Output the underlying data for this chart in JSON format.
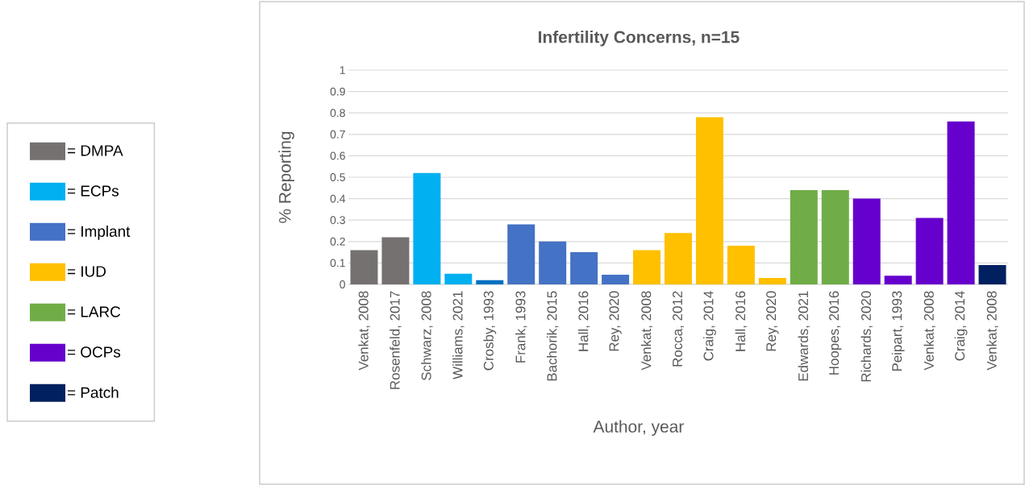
{
  "chart_data": {
    "type": "bar",
    "title": "Infertility Concerns, n=15",
    "xlabel": "Author, year",
    "ylabel": "% Reporting",
    "categories": [
      "Venkat, 2008",
      "Rosenfeld, 2017",
      "Schwarz, 2008",
      "Williams, 2021",
      "Crosby, 1993",
      "Frank, 1993",
      "Bachorik, 2015",
      "Hall, 2016",
      "Rey, 2020",
      "Venkat, 2008",
      "Rocca, 2012",
      "Craig, 2014",
      "Hall, 2016",
      "Rey, 2020",
      "Edwards, 2021",
      "Hoopes, 2016",
      "Richards, 2020",
      "Peipart, 1993",
      "Venkat, 2008",
      "Craig, 2014",
      "Venkat, 2008"
    ],
    "series": [
      {
        "name": "= DMPA",
        "color": "#767171",
        "values": [
          0.16,
          0.22,
          null,
          null,
          null,
          null,
          null,
          null,
          null,
          null,
          null,
          null,
          null,
          null,
          null,
          null,
          null,
          null,
          null,
          null,
          null
        ]
      },
      {
        "name": "= ECPs",
        "color": "#00b0f0",
        "values": [
          null,
          null,
          0.52,
          0.05,
          null,
          null,
          null,
          null,
          null,
          null,
          null,
          null,
          null,
          null,
          null,
          null,
          null,
          null,
          null,
          null,
          null
        ]
      },
      {
        "color": "#0070c0",
        "values": [
          null,
          null,
          null,
          null,
          0.02,
          null,
          null,
          null,
          null,
          null,
          null,
          null,
          null,
          null,
          null,
          null,
          null,
          null,
          null,
          null,
          null
        ]
      },
      {
        "name": "= Implant",
        "color": "#4472c4",
        "values": [
          null,
          null,
          null,
          null,
          null,
          0.28,
          0.2,
          0.15,
          0.045,
          null,
          null,
          null,
          null,
          null,
          null,
          null,
          null,
          null,
          null,
          null,
          null
        ]
      },
      {
        "name": "= IUD",
        "color": "#ffc000",
        "values": [
          null,
          null,
          null,
          null,
          null,
          null,
          null,
          null,
          null,
          0.16,
          0.24,
          0.78,
          0.18,
          0.03,
          null,
          null,
          null,
          null,
          null,
          null,
          null
        ]
      },
      {
        "name": "= LARC",
        "color": "#70ad47",
        "values": [
          null,
          null,
          null,
          null,
          null,
          null,
          null,
          null,
          null,
          null,
          null,
          null,
          null,
          null,
          0.44,
          0.44,
          null,
          null,
          null,
          null,
          null
        ]
      },
      {
        "name": "= OCPs",
        "color": "#6600cc",
        "values": [
          null,
          null,
          null,
          null,
          null,
          null,
          null,
          null,
          null,
          null,
          null,
          null,
          null,
          null,
          null,
          null,
          0.4,
          0.04,
          0.31,
          0.76,
          null
        ]
      },
      {
        "name": "= Patch",
        "color": "#002060",
        "values": [
          null,
          null,
          null,
          null,
          null,
          null,
          null,
          null,
          null,
          null,
          null,
          null,
          null,
          null,
          null,
          null,
          null,
          null,
          null,
          null,
          0.09
        ]
      }
    ],
    "ylim": [
      0,
      1
    ],
    "yticks": [
      0,
      0.1,
      0.2,
      0.3,
      0.4,
      0.5,
      0.6,
      0.7,
      0.8,
      0.9,
      1
    ],
    "grid": "y",
    "legend": "left"
  }
}
